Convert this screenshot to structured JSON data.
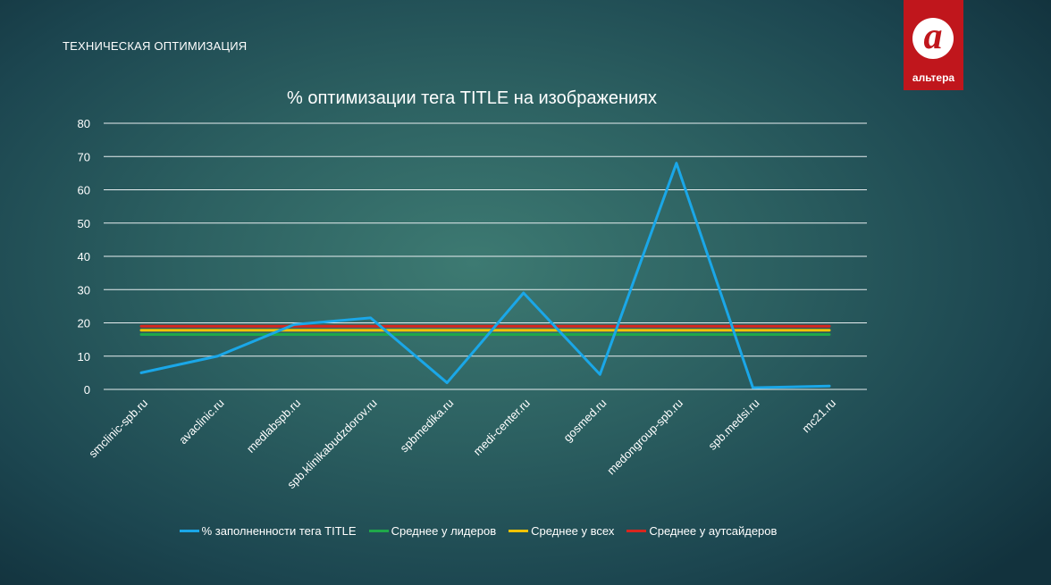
{
  "page": {
    "section_title": "ТЕХНИЧЕСКАЯ ОПТИМИЗАЦИЯ"
  },
  "logo": {
    "mark": "а",
    "text": "альтера",
    "color": "#c0161c"
  },
  "chart_data": {
    "type": "line",
    "title": "% оптимизации тега TITLE на изображениях",
    "xlabel": "",
    "ylabel": "",
    "ylim": [
      0,
      80
    ],
    "yticks": [
      0,
      10,
      20,
      30,
      40,
      50,
      60,
      70,
      80
    ],
    "grid": true,
    "legend_position": "bottom",
    "categories": [
      "smclinic-spb.ru",
      "avaclinic.ru",
      "medlabspb.ru",
      "spb.klinikabudzdorov.ru",
      "spbmedika.ru",
      "medi-center.ru",
      "gosmed.ru",
      "medongroup-spb.ru",
      "spb.medsi.ru",
      "mc21.ru"
    ],
    "series": [
      {
        "name": "% заполненности тега TITLE",
        "color": "#1aa7e8",
        "values": [
          5,
          10,
          19.5,
          21.5,
          2,
          29,
          4.5,
          68,
          0.5,
          1
        ]
      },
      {
        "name": "Среднее у лидеров",
        "color": "#1fa84a",
        "values": [
          16.5,
          16.5,
          16.5,
          16.5,
          16.5,
          16.5,
          16.5,
          16.5,
          16.5,
          16.5
        ]
      },
      {
        "name": "Среднее у всех",
        "color": "#f2c200",
        "values": [
          17.8,
          17.8,
          17.8,
          17.8,
          17.8,
          17.8,
          17.8,
          17.8,
          17.8,
          17.8
        ]
      },
      {
        "name": "Среднее у аутсайдеров",
        "color": "#d8261e",
        "values": [
          19,
          19,
          19,
          19,
          19,
          19,
          19,
          19,
          19,
          19
        ]
      }
    ]
  }
}
